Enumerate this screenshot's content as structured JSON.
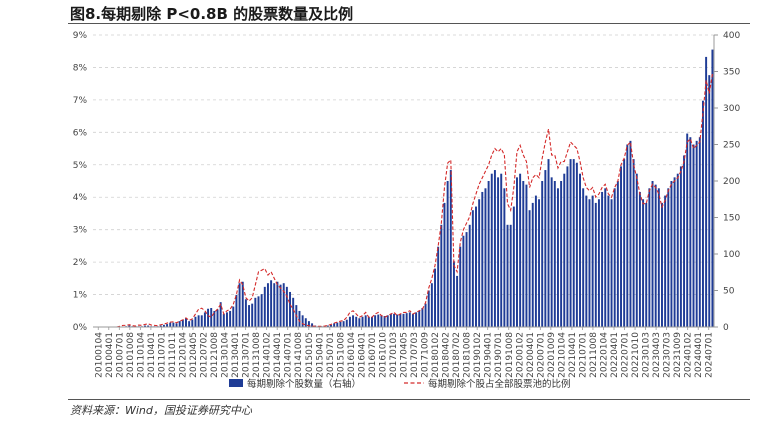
{
  "header": {
    "title": "图8.每期剔除 P<0.8B 的股票数量及比例"
  },
  "source": {
    "text": "资料来源：Wind，国投证券研究中心"
  },
  "colors": {
    "bar": "#1f3c96",
    "line": "#d42a2a",
    "grid": "#d0d0d0"
  },
  "chart_data": {
    "type": "bar+line",
    "xlabel": "",
    "ylabel_left": "",
    "ylabel_right": "",
    "left_axis": {
      "min": 0,
      "max": 9,
      "step": 1,
      "format": "percent",
      "ticks": [
        "0%",
        "1%",
        "2%",
        "3%",
        "4%",
        "5%",
        "6%",
        "7%",
        "8%",
        "9%"
      ]
    },
    "right_axis": {
      "min": 0,
      "max": 400,
      "step": 50,
      "ticks": [
        "0",
        "50",
        "100",
        "150",
        "200",
        "250",
        "300",
        "350",
        "400"
      ]
    },
    "x_tick_labels": [
      "20100104",
      "20100401",
      "20100701",
      "20101008",
      "20110104",
      "20110401",
      "20110701",
      "20111011",
      "20120104",
      "20120405",
      "20120702",
      "20121008",
      "20130104",
      "20130401",
      "20130701",
      "20131008",
      "20140102",
      "20140401",
      "20140701",
      "20141008",
      "20150105",
      "20150401",
      "20150701",
      "20151008",
      "20160104",
      "20160401",
      "20160701",
      "20161010",
      "20170103",
      "20170405",
      "20170703",
      "20171009",
      "20180102",
      "20180402",
      "20180702",
      "20181008",
      "20190102",
      "20190401",
      "20190701",
      "20191008",
      "20200102",
      "20200401",
      "20200701",
      "20201009",
      "20210104",
      "20210401",
      "20210701",
      "20211008",
      "20220104",
      "20220401",
      "20220701",
      "20221010",
      "20230103",
      "20230403",
      "20230703",
      "20231009",
      "20240102",
      "20240401",
      "20240701"
    ],
    "legend": {
      "bar_label": "每期剔除个股数量（右轴）",
      "line_label": "每期剔除个股占全部股票池的比例",
      "position": "bottom"
    },
    "grid": true,
    "series": [
      {
        "name": "每期剔除个股数量（右轴）",
        "axis": "right",
        "kind": "bar",
        "values": [
          0,
          0,
          0,
          0,
          0,
          0,
          0,
          0,
          0,
          0,
          1,
          2,
          1,
          1,
          1,
          1,
          2,
          2,
          1,
          1,
          1,
          2,
          3,
          4,
          6,
          6,
          5,
          8,
          10,
          12,
          8,
          10,
          14,
          16,
          16,
          20,
          25,
          26,
          22,
          24,
          34,
          18,
          20,
          22,
          28,
          44,
          60,
          62,
          38,
          30,
          32,
          40,
          42,
          45,
          55,
          60,
          64,
          60,
          62,
          58,
          60,
          55,
          48,
          40,
          30,
          22,
          16,
          12,
          8,
          5,
          2,
          1,
          1,
          1,
          2,
          3,
          5,
          6,
          7,
          8,
          10,
          14,
          16,
          14,
          12,
          14,
          16,
          14,
          14,
          16,
          17,
          16,
          15,
          16,
          18,
          18,
          17,
          18,
          18,
          19,
          20,
          18,
          20,
          22,
          26,
          32,
          50,
          60,
          80,
          110,
          140,
          170,
          200,
          215,
          90,
          70,
          110,
          125,
          130,
          140,
          160,
          165,
          175,
          185,
          190,
          200,
          210,
          215,
          205,
          210,
          190,
          140,
          140,
          165,
          205,
          210,
          200,
          195,
          160,
          170,
          180,
          175,
          200,
          215,
          230,
          205,
          200,
          190,
          200,
          210,
          220,
          230,
          230,
          225,
          210,
          190,
          180,
          175,
          180,
          170,
          175,
          185,
          190,
          180,
          175,
          190,
          200,
          220,
          230,
          250,
          255,
          230,
          210,
          185,
          175,
          170,
          190,
          200,
          195,
          190,
          170,
          180,
          190,
          200,
          205,
          210,
          220,
          235,
          265,
          260,
          250,
          255,
          260,
          310,
          370,
          345,
          380
        ]
      },
      {
        "name": "每期剔除个股占全部股票池的比例",
        "axis": "left",
        "kind": "line",
        "values": [
          0,
          0,
          0,
          0,
          0,
          0,
          0,
          0,
          0.02,
          0.05,
          0.05,
          0.07,
          0.04,
          0.03,
          0.06,
          0.05,
          0.08,
          0.1,
          0.06,
          0.05,
          0.04,
          0.07,
          0.09,
          0.12,
          0.15,
          0.16,
          0.13,
          0.18,
          0.22,
          0.28,
          0.2,
          0.25,
          0.4,
          0.55,
          0.58,
          0.5,
          0.35,
          0.3,
          0.45,
          0.55,
          0.7,
          0.4,
          0.5,
          0.55,
          0.7,
          1.0,
          1.45,
          1.3,
          0.9,
          0.8,
          0.9,
          1.3,
          1.7,
          1.75,
          1.8,
          1.6,
          1.7,
          1.5,
          1.3,
          1.2,
          1.1,
          0.95,
          0.7,
          0.55,
          0.35,
          0.18,
          0.1,
          0.06,
          0.04,
          0.03,
          0.02,
          0.02,
          0.02,
          0.03,
          0.05,
          0.08,
          0.12,
          0.15,
          0.18,
          0.2,
          0.3,
          0.45,
          0.5,
          0.4,
          0.3,
          0.35,
          0.45,
          0.3,
          0.3,
          0.4,
          0.45,
          0.35,
          0.3,
          0.35,
          0.4,
          0.45,
          0.35,
          0.4,
          0.45,
          0.45,
          0.5,
          0.4,
          0.45,
          0.5,
          0.55,
          0.75,
          1.2,
          1.5,
          1.9,
          2.5,
          3.2,
          4.3,
          5.05,
          5.15,
          1.9,
          1.7,
          2.6,
          3.0,
          3.2,
          3.4,
          3.8,
          4.1,
          4.4,
          4.6,
          4.8,
          5.0,
          5.3,
          5.5,
          5.4,
          5.5,
          5.3,
          3.8,
          3.6,
          4.3,
          5.4,
          5.6,
          5.3,
          5.1,
          4.3,
          4.6,
          4.7,
          4.6,
          5.2,
          5.7,
          6.1,
          5.3,
          5.3,
          4.9,
          5.1,
          5.1,
          5.4,
          5.7,
          5.6,
          5.5,
          5.1,
          4.6,
          4.3,
          4.2,
          4.3,
          4.0,
          4.1,
          4.3,
          4.4,
          4.1,
          4.0,
          4.3,
          4.5,
          5.0,
          5.2,
          5.6,
          5.7,
          5.0,
          4.6,
          4.1,
          3.8,
          3.8,
          4.2,
          4.4,
          4.3,
          4.1,
          3.7,
          3.9,
          4.2,
          4.4,
          4.5,
          4.6,
          4.8,
          5.1,
          5.7,
          5.8,
          5.5,
          5.6,
          5.7,
          6.6,
          7.6,
          7.2,
          7.8
        ]
      }
    ]
  }
}
